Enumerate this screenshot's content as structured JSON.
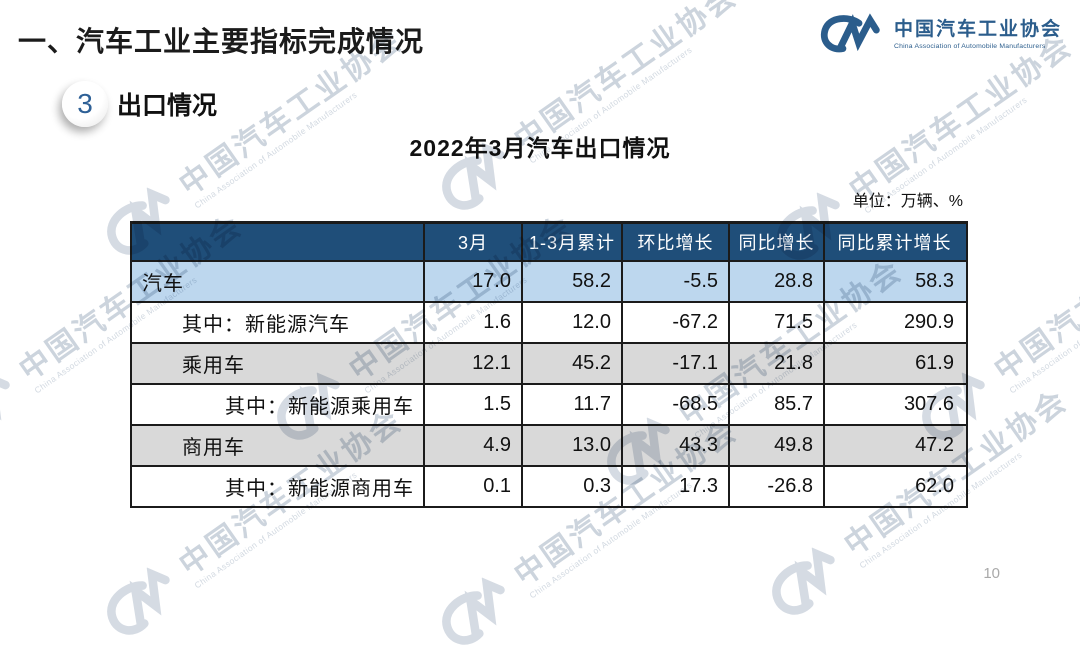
{
  "slide": {
    "title": "一、汽车工业主要指标完成情况",
    "section_number": "3",
    "section_label": "出口情况",
    "table_title": "2022年3月汽车出口情况",
    "unit_note": "单位：万辆、%",
    "page_number": "10"
  },
  "logo": {
    "org_name_cn": "中国汽车工业协会",
    "org_name_en": "China Association of Automobile Manufacturers",
    "brand_color": "#2b5d8c"
  },
  "watermark": {
    "text_cn": "中国汽车工业协会",
    "text_en": "China Association of Automobile Manufacturers"
  },
  "colors": {
    "header_bg": "#1f4e79",
    "header_text": "#ffffff",
    "row_highlight_bg": "#bdd7ee",
    "row_alt_bg": "#d9d9d9",
    "border": "#1b1b1b",
    "brand_blue": "#2b5d8c"
  },
  "table": {
    "columns": [
      "",
      "3月",
      "1-3月累计",
      "环比增长",
      "同比增长",
      "同比累计增长"
    ],
    "rows": [
      {
        "label": "汽车",
        "indent": 0,
        "bg": "highlight",
        "values": [
          "17.0",
          "58.2",
          "-5.5",
          "28.8",
          "58.3"
        ]
      },
      {
        "label": "其中：新能源汽车",
        "indent": 1,
        "bg": "white",
        "values": [
          "1.6",
          "12.0",
          "-67.2",
          "71.5",
          "290.9"
        ]
      },
      {
        "label": "乘用车",
        "indent": 1,
        "bg": "alt",
        "values": [
          "12.1",
          "45.2",
          "-17.1",
          "21.8",
          "61.9"
        ]
      },
      {
        "label": "其中：新能源乘用车",
        "indent": 2,
        "bg": "white",
        "values": [
          "1.5",
          "11.7",
          "-68.5",
          "85.7",
          "307.6"
        ]
      },
      {
        "label": "商用车",
        "indent": 1,
        "bg": "alt",
        "values": [
          "4.9",
          "13.0",
          "43.3",
          "49.8",
          "47.2"
        ]
      },
      {
        "label": "其中：新能源商用车",
        "indent": 2,
        "bg": "white",
        "values": [
          "0.1",
          "0.3",
          "17.3",
          "-26.8",
          "62.0"
        ]
      }
    ]
  }
}
